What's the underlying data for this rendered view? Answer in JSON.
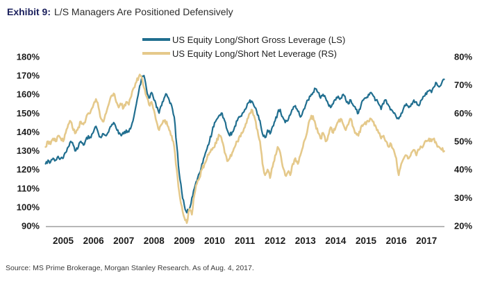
{
  "title": {
    "prefix": "Exhibit 9:",
    "text": "L/S Managers Are Positioned Defensively"
  },
  "source": "Source: MS Prime Brokerage, Morgan Stanley Research. As of Aug. 4, 2017.",
  "colors": {
    "gross_line": "#206E8F",
    "net_line": "#E5C98B",
    "title_prefix": "#1A1F5C",
    "axis_line": "#8C8C8C",
    "text": "#1C1C1C"
  },
  "chart_data": {
    "type": "line",
    "title": "L/S Managers Are Positioned Defensively",
    "grid": false,
    "legend_position": "top-center",
    "x_start": 2004.4167,
    "x_step": 0.08333,
    "x_tick_labels": [
      "2005",
      "2006",
      "2007",
      "2008",
      "2009",
      "2010",
      "2011",
      "2012",
      "2013",
      "2014",
      "2015",
      "2016",
      "2017"
    ],
    "left_axis": {
      "labels": [
        "180%",
        "170%",
        "160%",
        "150%",
        "140%",
        "130%",
        "120%",
        "110%",
        "100%",
        "90%"
      ],
      "range": [
        90,
        180
      ]
    },
    "right_axis": {
      "labels": [
        "80%",
        "70%",
        "60%",
        "50%",
        "40%",
        "30%",
        "20%"
      ],
      "range": [
        20,
        80
      ]
    },
    "series": [
      {
        "name": "US Equity Long/Short Gross Leverage (LS)",
        "axis": "left",
        "color": "#206E8F",
        "values": [
          123,
          125,
          124,
          126,
          125,
          127,
          126,
          126,
          129,
          132,
          135,
          133,
          130,
          132,
          135,
          133,
          136,
          138,
          137,
          140,
          143,
          139,
          137,
          139,
          138,
          140,
          143,
          145,
          142,
          139,
          138,
          139,
          141,
          140,
          143,
          148,
          155,
          162,
          168,
          170,
          163,
          158,
          161,
          157,
          153,
          150,
          154,
          158,
          160,
          157,
          154,
          148,
          133,
          118,
          108,
          101,
          97,
          99,
          105,
          110,
          114,
          118,
          123,
          127,
          131,
          135,
          140,
          145,
          147,
          149,
          150,
          146,
          141,
          138,
          140,
          143,
          146,
          148,
          150,
          152,
          155,
          157,
          156,
          153,
          149,
          146,
          139,
          137,
          141,
          139,
          143,
          146,
          150,
          152,
          148,
          145,
          146,
          149,
          152,
          154,
          151,
          148,
          151,
          154,
          157,
          159,
          161,
          163,
          161,
          158,
          160,
          158,
          155,
          153,
          155,
          157,
          159,
          158,
          160,
          157,
          155,
          157,
          154,
          152,
          150,
          154,
          157,
          158,
          160,
          161,
          159,
          157,
          155,
          152,
          155,
          157,
          154,
          152,
          150,
          148,
          147,
          150,
          153,
          155,
          153,
          155,
          157,
          156,
          154,
          157,
          159,
          160,
          162,
          161,
          164,
          166,
          164,
          166,
          168
        ]
      },
      {
        "name": "US Equity Long/Short Net Leverage (RS)",
        "axis": "right",
        "color": "#E5C98B",
        "values": [
          48,
          50,
          49,
          51,
          50,
          52,
          51,
          50,
          53,
          56,
          57,
          54,
          53,
          55,
          57,
          56,
          58,
          60,
          61,
          63,
          65,
          62,
          58,
          57,
          60,
          63,
          66,
          67,
          64,
          62,
          63,
          62,
          64,
          63,
          66,
          69,
          71,
          73,
          73,
          69,
          66,
          63,
          64,
          61,
          57,
          54,
          56,
          57,
          57,
          54,
          52,
          48,
          40,
          32,
          27,
          23,
          21,
          26,
          24,
          31,
          35,
          37,
          40,
          42,
          44,
          46,
          47,
          48,
          51,
          52,
          50,
          46,
          43,
          44,
          46,
          48,
          50,
          52,
          53,
          55,
          58,
          60,
          61,
          58,
          54,
          50,
          42,
          38,
          40,
          37,
          41,
          45,
          48,
          46,
          41,
          38,
          39,
          38,
          42,
          44,
          42,
          45,
          48,
          51,
          55,
          58,
          59,
          56,
          53,
          51,
          53,
          50,
          52,
          55,
          53,
          55,
          57,
          58,
          56,
          54,
          56,
          58,
          55,
          53,
          52,
          55,
          56,
          56,
          57,
          58,
          57,
          55,
          53,
          51,
          52,
          50,
          48,
          49,
          47,
          44,
          38,
          42,
          44,
          45,
          44,
          46,
          47,
          45,
          47,
          48,
          49,
          50,
          51,
          50,
          51,
          49,
          48,
          47,
          46.5
        ]
      }
    ]
  }
}
